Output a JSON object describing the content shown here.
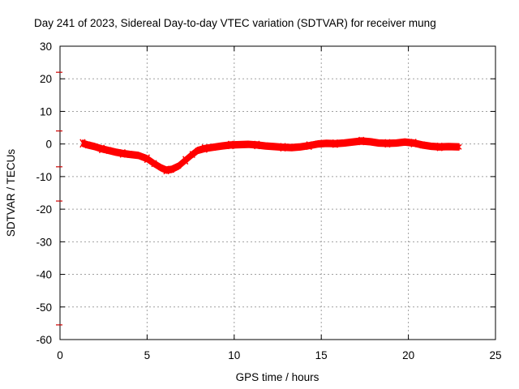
{
  "chart_data": {
    "type": "line",
    "title": "Day 241 of 2023, Sidereal Day-to-day VTEC variation (SDTVAR) for receiver mung",
    "xlabel": "GPS time / hours",
    "ylabel": "SDTVAR / TECUs",
    "xlim": [
      0,
      25
    ],
    "ylim": [
      -60,
      30
    ],
    "xticks": [
      0,
      5,
      10,
      15,
      20,
      25
    ],
    "yticks": [
      -60,
      -50,
      -40,
      -30,
      -20,
      -10,
      0,
      10,
      20,
      30
    ],
    "grid": true,
    "series": [
      {
        "name": "SDTVAR",
        "color": "#ff0000",
        "band_halfwidth": 0.9,
        "x": [
          1.3,
          1.6,
          2.0,
          2.4,
          2.8,
          3.2,
          3.6,
          4.0,
          4.5,
          5.0,
          5.4,
          5.8,
          6.1,
          6.4,
          6.8,
          7.2,
          7.6,
          7.9,
          8.3,
          8.8,
          9.3,
          9.8,
          10.3,
          10.8,
          11.3,
          11.8,
          12.3,
          12.8,
          13.3,
          13.8,
          14.3,
          14.8,
          15.3,
          15.8,
          16.3,
          16.8,
          17.3,
          17.8,
          18.3,
          18.8,
          19.3,
          19.8,
          20.3,
          20.8,
          21.3,
          21.8,
          22.3,
          22.9
        ],
        "y": [
          0.2,
          -0.3,
          -0.8,
          -1.5,
          -2.0,
          -2.5,
          -2.9,
          -3.2,
          -3.5,
          -4.5,
          -6.0,
          -7.3,
          -8.0,
          -7.8,
          -6.8,
          -5.0,
          -3.2,
          -2.0,
          -1.4,
          -1.0,
          -0.6,
          -0.3,
          -0.2,
          -0.1,
          -0.3,
          -0.6,
          -0.8,
          -1.0,
          -1.1,
          -0.9,
          -0.5,
          0.0,
          0.2,
          0.1,
          0.3,
          0.6,
          0.9,
          0.7,
          0.3,
          0.2,
          0.3,
          0.6,
          0.3,
          -0.3,
          -0.7,
          -0.9,
          -0.8,
          -0.9
        ]
      }
    ],
    "left_axis_marks": [
      22,
      4,
      -7,
      -17.5,
      -55.5
    ],
    "mark_color": "#cc0000"
  }
}
